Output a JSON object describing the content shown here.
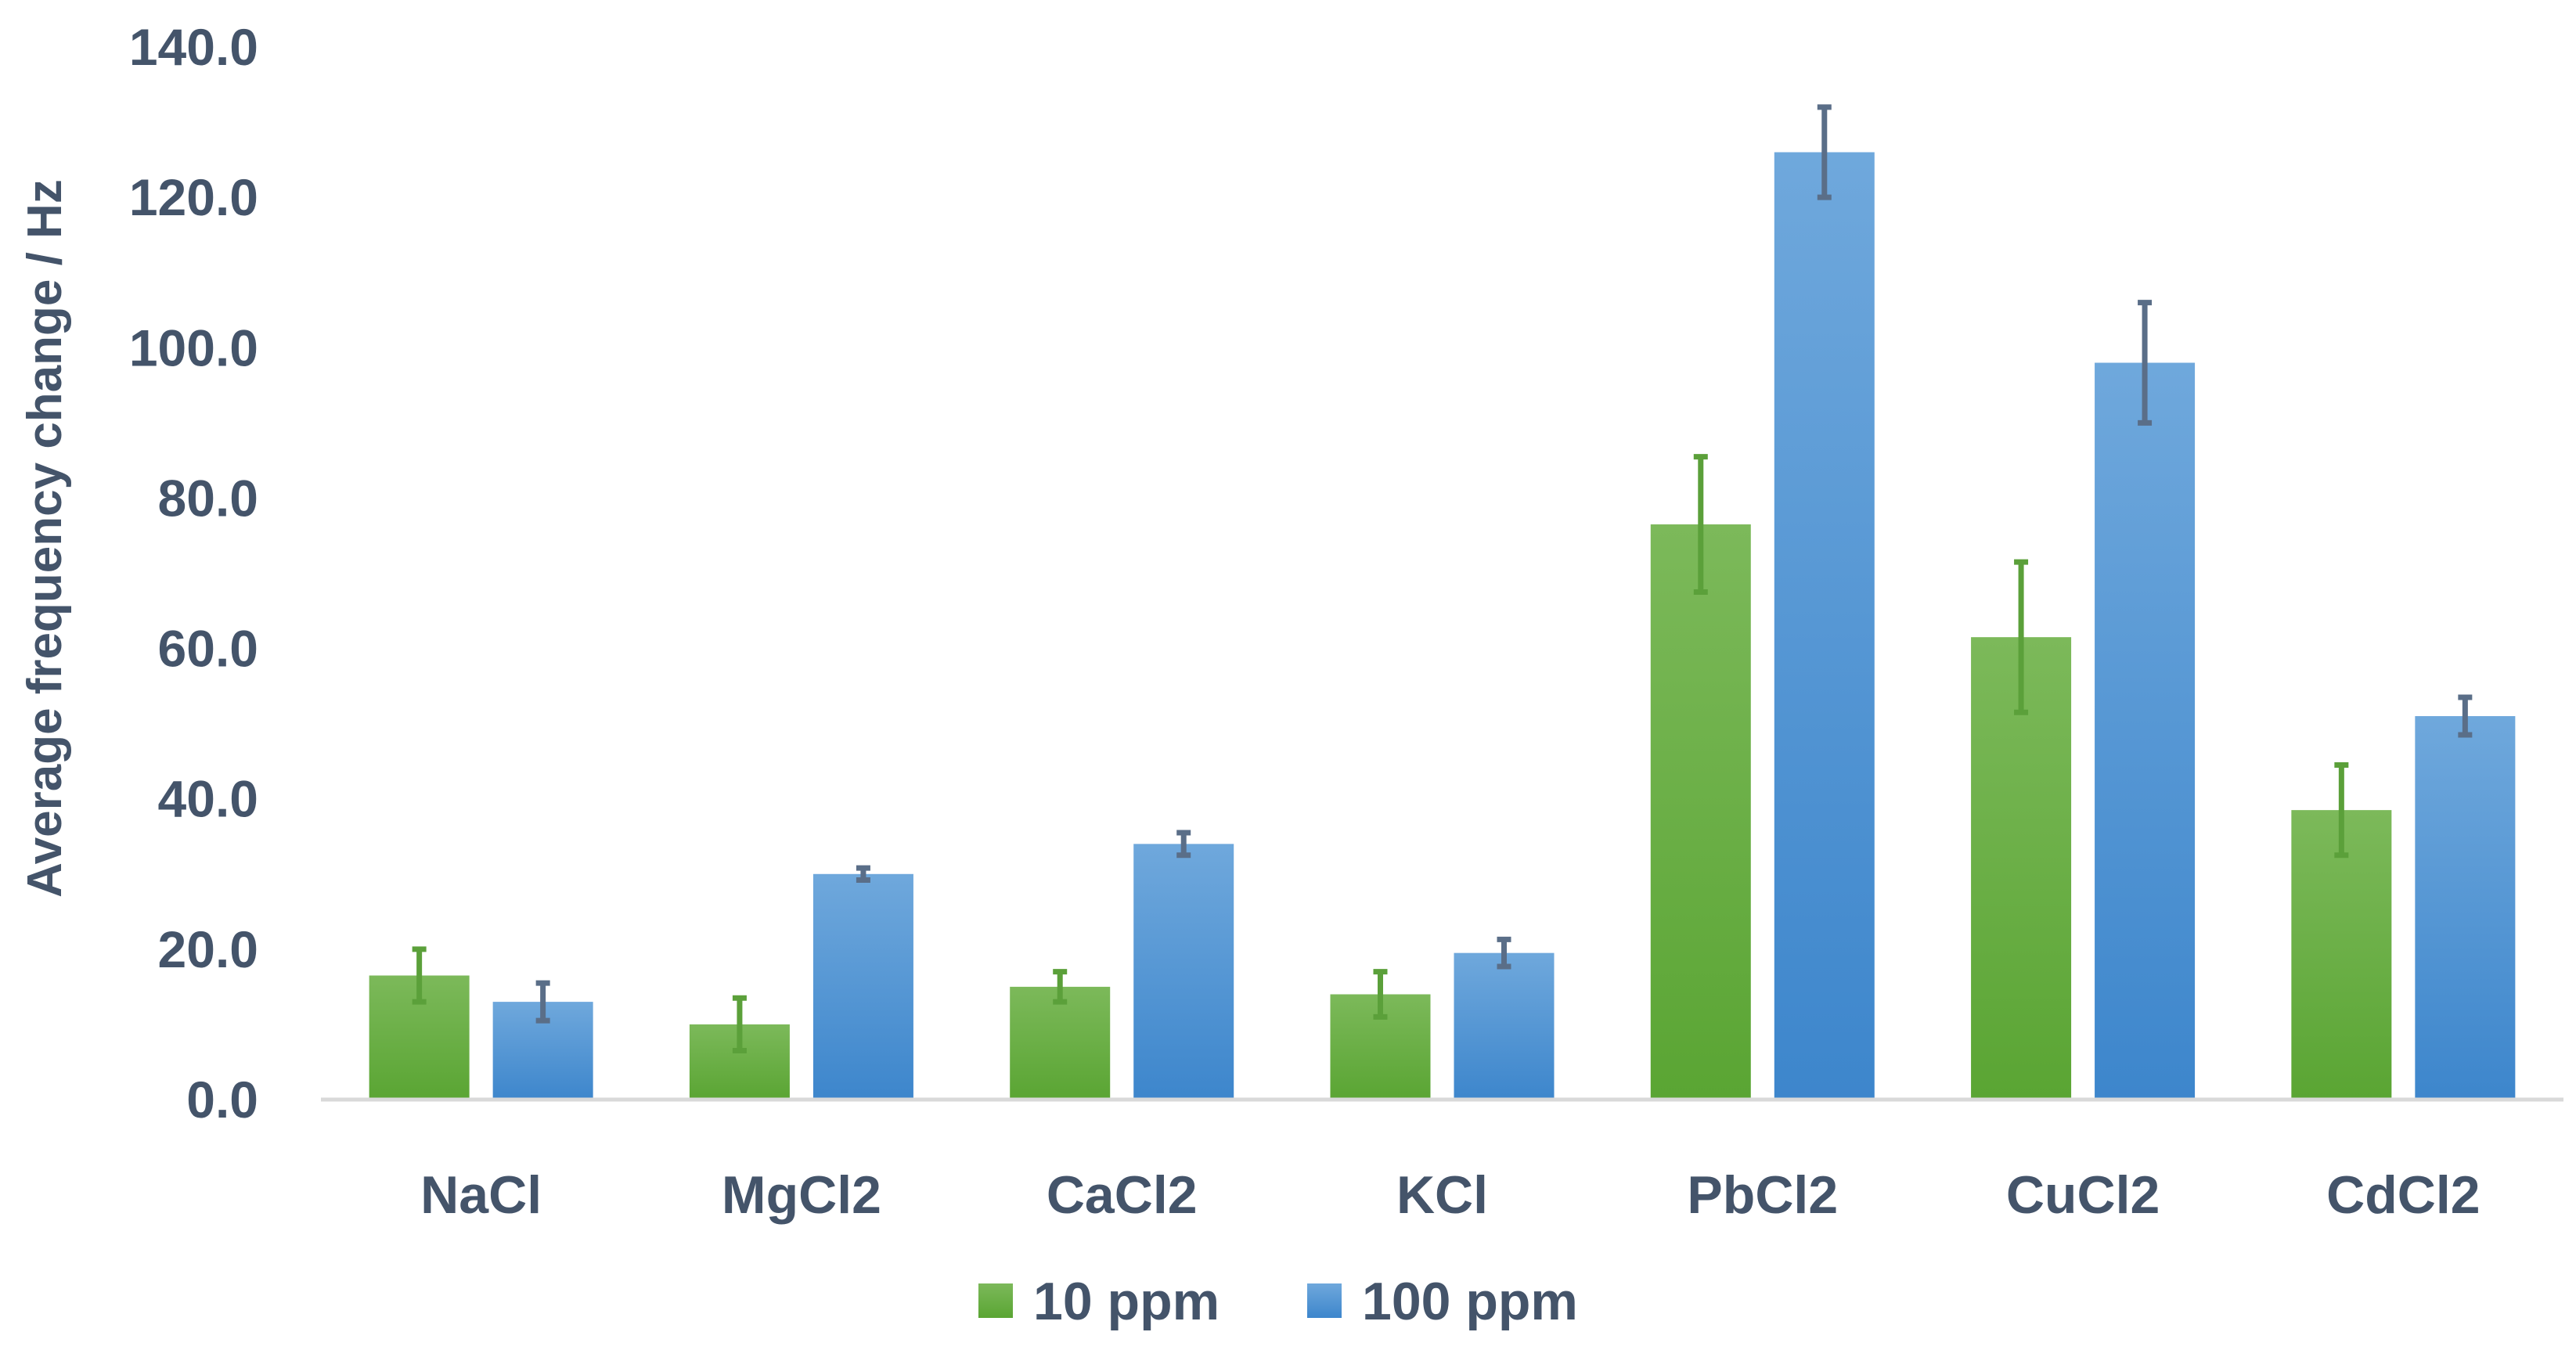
{
  "chart_data": {
    "type": "bar",
    "title": "",
    "xlabel": "",
    "ylabel": "Average frequency change / Hz",
    "ylim": [
      0,
      140
    ],
    "yticks": [
      "0.0",
      "20.0",
      "40.0",
      "60.0",
      "80.0",
      "100.0",
      "120.0",
      "140.0"
    ],
    "grid": false,
    "legend_position": "bottom",
    "categories": [
      "NaCl",
      "MgCl2",
      "CaCl2",
      "KCl",
      "PbCl2",
      "CuCl2",
      "CdCl2"
    ],
    "series": [
      {
        "name": "10 ppm",
        "color": "#6aaa3a",
        "values": [
          16.5,
          10.0,
          15.0,
          14.0,
          76.5,
          61.5,
          38.5
        ],
        "errors": [
          3.5,
          3.5,
          2.0,
          3.0,
          9.0,
          10.0,
          6.0
        ]
      },
      {
        "name": "100 ppm",
        "color": "#4a90d0",
        "values": [
          13.0,
          30.0,
          34.0,
          19.5,
          126.0,
          98.0,
          51.0
        ],
        "errors": [
          2.5,
          0.8,
          1.5,
          1.8,
          6.0,
          8.0,
          2.5
        ]
      }
    ],
    "colors": {
      "axis": "#d9d9d9",
      "text": "#44546a",
      "error_bar_10ppm": "#5ba03a",
      "error_bar_100ppm": "#5a6e88"
    }
  }
}
